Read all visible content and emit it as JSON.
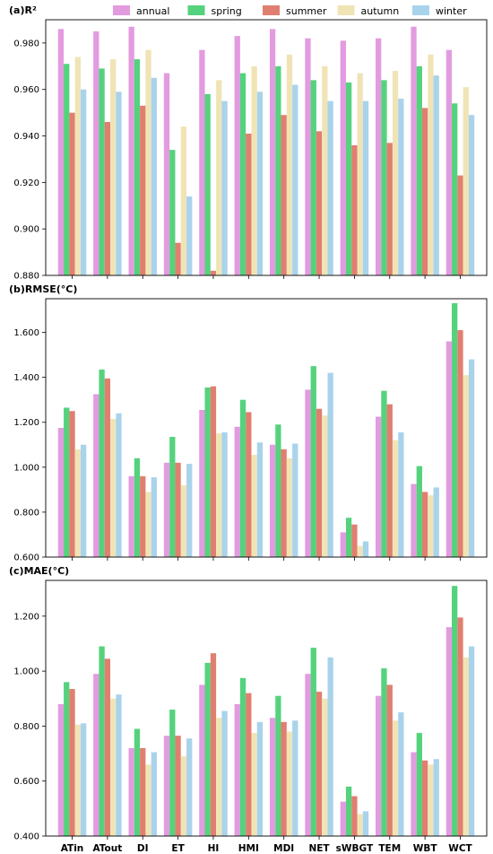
{
  "chart_data": [
    {
      "type": "bar",
      "title": "(a)R²",
      "categories": [
        "ATin",
        "ATout",
        "DI",
        "ET",
        "HI",
        "HMI",
        "MDI",
        "NET",
        "sWBGT",
        "TEM",
        "WBT",
        "WCT"
      ],
      "ylim": [
        0.88,
        0.99
      ],
      "yticks": [
        0.88,
        0.9,
        0.92,
        0.94,
        0.96,
        0.98
      ],
      "ytick_labels": [
        "0.880",
        "0.900",
        "0.920",
        "0.940",
        "0.960",
        "0.980"
      ],
      "grid": false,
      "legend": "top",
      "series": [
        {
          "name": "annual",
          "values": [
            0.986,
            0.985,
            0.987,
            0.967,
            0.977,
            0.983,
            0.986,
            0.982,
            0.981,
            0.982,
            0.987,
            0.977
          ]
        },
        {
          "name": "spring",
          "values": [
            0.971,
            0.969,
            0.973,
            0.934,
            0.958,
            0.967,
            0.97,
            0.964,
            0.963,
            0.964,
            0.97,
            0.954
          ]
        },
        {
          "name": "summer",
          "values": [
            0.95,
            0.946,
            0.953,
            0.894,
            0.882,
            0.941,
            0.949,
            0.942,
            0.936,
            0.937,
            0.952,
            0.923
          ]
        },
        {
          "name": "autumn",
          "values": [
            0.974,
            0.973,
            0.977,
            0.944,
            0.964,
            0.97,
            0.975,
            0.97,
            0.967,
            0.968,
            0.975,
            0.961
          ]
        },
        {
          "name": "winter",
          "values": [
            0.96,
            0.959,
            0.965,
            0.914,
            0.955,
            0.959,
            0.962,
            0.955,
            0.955,
            0.956,
            0.966,
            0.949
          ]
        }
      ]
    },
    {
      "type": "bar",
      "title": "(b)RMSE(°C)",
      "categories": [
        "ATin",
        "ATout",
        "DI",
        "ET",
        "HI",
        "HMI",
        "MDI",
        "NET",
        "sWBGT",
        "TEM",
        "WBT",
        "WCT"
      ],
      "ylim": [
        0.6,
        1.75
      ],
      "yticks": [
        0.6,
        0.8,
        1.0,
        1.2,
        1.4,
        1.6
      ],
      "ytick_labels": [
        "0.600",
        "0.800",
        "1.000",
        "1.200",
        "1.400",
        "1.600"
      ],
      "grid": false,
      "series": [
        {
          "name": "annual",
          "values": [
            1.175,
            1.325,
            0.96,
            1.02,
            1.255,
            1.18,
            1.1,
            1.345,
            0.71,
            1.225,
            0.925,
            1.56
          ]
        },
        {
          "name": "spring",
          "values": [
            1.265,
            1.435,
            1.04,
            1.135,
            1.355,
            1.3,
            1.19,
            1.45,
            0.775,
            1.34,
            1.005,
            1.73
          ]
        },
        {
          "name": "summer",
          "values": [
            1.25,
            1.395,
            0.96,
            1.02,
            1.36,
            1.245,
            1.08,
            1.26,
            0.745,
            1.28,
            0.89,
            1.61
          ]
        },
        {
          "name": "autumn",
          "values": [
            1.08,
            1.215,
            0.89,
            0.92,
            1.15,
            1.055,
            1.04,
            1.23,
            0.65,
            1.12,
            0.875,
            1.41
          ]
        },
        {
          "name": "winter",
          "values": [
            1.1,
            1.24,
            0.955,
            1.015,
            1.155,
            1.11,
            1.105,
            1.42,
            0.67,
            1.155,
            0.91,
            1.48
          ]
        }
      ]
    },
    {
      "type": "bar",
      "title": "(c)MAE(°C)",
      "categories": [
        "ATin",
        "ATout",
        "DI",
        "ET",
        "HI",
        "HMI",
        "MDI",
        "NET",
        "sWBGT",
        "TEM",
        "WBT",
        "WCT"
      ],
      "ylim": [
        0.4,
        1.33
      ],
      "yticks": [
        0.4,
        0.6,
        0.8,
        1.0,
        1.2
      ],
      "ytick_labels": [
        "0.400",
        "0.600",
        "0.800",
        "1.000",
        "1.200"
      ],
      "grid": false,
      "series": [
        {
          "name": "annual",
          "values": [
            0.88,
            0.99,
            0.72,
            0.765,
            0.95,
            0.88,
            0.83,
            0.99,
            0.525,
            0.91,
            0.705,
            1.16
          ]
        },
        {
          "name": "spring",
          "values": [
            0.96,
            1.09,
            0.79,
            0.86,
            1.03,
            0.975,
            0.91,
            1.085,
            0.58,
            1.01,
            0.775,
            1.31
          ]
        },
        {
          "name": "summer",
          "values": [
            0.935,
            1.045,
            0.72,
            0.765,
            1.065,
            0.92,
            0.815,
            0.925,
            0.545,
            0.95,
            0.675,
            1.195
          ]
        },
        {
          "name": "autumn",
          "values": [
            0.805,
            0.9,
            0.66,
            0.69,
            0.83,
            0.775,
            0.78,
            0.9,
            0.48,
            0.82,
            0.66,
            1.05
          ]
        },
        {
          "name": "winter",
          "values": [
            0.81,
            0.915,
            0.705,
            0.755,
            0.855,
            0.815,
            0.82,
            1.05,
            0.49,
            0.85,
            0.68,
            1.09
          ]
        }
      ]
    }
  ],
  "legend": {
    "items": [
      {
        "label": "annual",
        "color": "#e39be0"
      },
      {
        "label": "spring",
        "color": "#55d27d"
      },
      {
        "label": "summer",
        "color": "#e07f70"
      },
      {
        "label": "autumn",
        "color": "#f0e4b6"
      },
      {
        "label": "winter",
        "color": "#a9d3eb"
      }
    ]
  }
}
